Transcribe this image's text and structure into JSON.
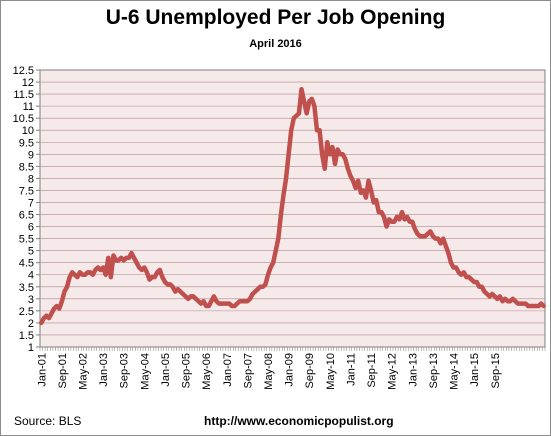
{
  "chart_title": "U-6 Unemployed Per Job Opening",
  "chart_subtitle": "April 2016",
  "footer": {
    "source": "Source:  BLS",
    "url": "http://www.economicpopulist.org"
  },
  "colors": {
    "line": "#c0504d",
    "plot_bg": "#f6e9e9",
    "grid": "#b08a8a"
  },
  "chart_data": {
    "type": "line",
    "title": "U-6 Unemployed Per Job Opening",
    "subtitle": "April 2016",
    "xlabel": "",
    "ylabel": "",
    "ylim": [
      1,
      12.5
    ],
    "ytick_step": 0.5,
    "yticks": [
      "1",
      "1.5",
      "2",
      "2.5",
      "3",
      "3.5",
      "4",
      "4.5",
      "5",
      "5.5",
      "6",
      "6.5",
      "7",
      "7.5",
      "8",
      "8.5",
      "9",
      "9.5",
      "10",
      "10.5",
      "11",
      "11.5",
      "12",
      "12.5"
    ],
    "grid": true,
    "legend": "none",
    "x_start": "Jan-01",
    "x_end": "Apr-16",
    "xtick_labels": [
      "Jan-01",
      "Sep-01",
      "May-02",
      "Jan-03",
      "Sep-03",
      "May-04",
      "Jan-05",
      "Sep-05",
      "May-06",
      "Jan-07",
      "Sep-07",
      "May-08",
      "Jan-09",
      "Sep-09",
      "May-10",
      "Jan-11",
      "Sep-11",
      "May-12",
      "Jan-13",
      "Sep-13",
      "May-14",
      "Jan-15",
      "Sep-15"
    ],
    "series": [
      {
        "values": [
          2.0,
          2.2,
          2.3,
          2.2,
          2.4,
          2.6,
          2.7,
          2.6,
          2.9,
          3.3,
          3.5,
          3.9,
          4.1,
          4.0,
          3.9,
          4.1,
          4.0,
          4.0,
          4.1,
          4.1,
          4.0,
          4.2,
          4.3,
          4.2,
          4.3,
          4.0,
          4.7,
          3.9,
          4.8,
          4.6,
          4.6,
          4.7,
          4.6,
          4.7,
          4.7,
          4.9,
          4.7,
          4.5,
          4.3,
          4.2,
          4.3,
          4.1,
          3.8,
          3.9,
          3.9,
          4.1,
          4.2,
          3.9,
          3.7,
          3.6,
          3.6,
          3.5,
          3.3,
          3.4,
          3.3,
          3.2,
          3.1,
          3.0,
          3.1,
          3.1,
          3.0,
          2.9,
          2.8,
          2.9,
          2.7,
          2.7,
          2.9,
          3.1,
          2.9,
          2.8,
          2.8,
          2.8,
          2.8,
          2.8,
          2.7,
          2.7,
          2.8,
          2.9,
          2.9,
          2.9,
          2.9,
          3.0,
          3.2,
          3.3,
          3.4,
          3.5,
          3.5,
          3.6,
          4.0,
          4.3,
          4.5,
          5.0,
          5.5,
          6.5,
          7.3,
          8.0,
          9.0,
          10.0,
          10.5,
          10.6,
          10.7,
          11.7,
          11.2,
          10.7,
          11.2,
          11.3,
          11.0,
          10.0,
          10.0,
          9.0,
          8.4,
          9.5,
          9.0,
          9.3,
          8.6,
          9.2,
          9.0,
          9.0,
          8.8,
          8.4,
          8.1,
          7.9,
          7.6,
          7.9,
          7.4,
          7.5,
          7.2,
          7.9,
          7.5,
          7.0,
          7.1,
          6.6,
          6.6,
          6.4,
          6.0,
          6.3,
          6.2,
          6.2,
          6.4,
          6.3,
          6.6,
          6.3,
          6.4,
          6.2,
          6.2,
          5.9,
          5.7,
          5.6,
          5.6,
          5.6,
          5.7,
          5.8,
          5.6,
          5.5,
          5.5,
          5.3,
          5.5,
          5.2,
          4.9,
          4.5,
          4.3,
          4.3,
          4.1,
          4.0,
          4.1,
          3.9,
          3.9,
          3.8,
          3.7,
          3.7,
          3.5,
          3.5,
          3.3,
          3.2,
          3.1,
          3.2,
          3.1,
          3.0,
          3.1,
          2.9,
          3.0,
          2.9,
          2.9,
          3.0,
          2.9,
          2.8,
          2.8,
          2.8,
          2.8,
          2.7,
          2.7,
          2.7,
          2.7,
          2.7,
          2.8,
          2.7
        ]
      }
    ]
  }
}
